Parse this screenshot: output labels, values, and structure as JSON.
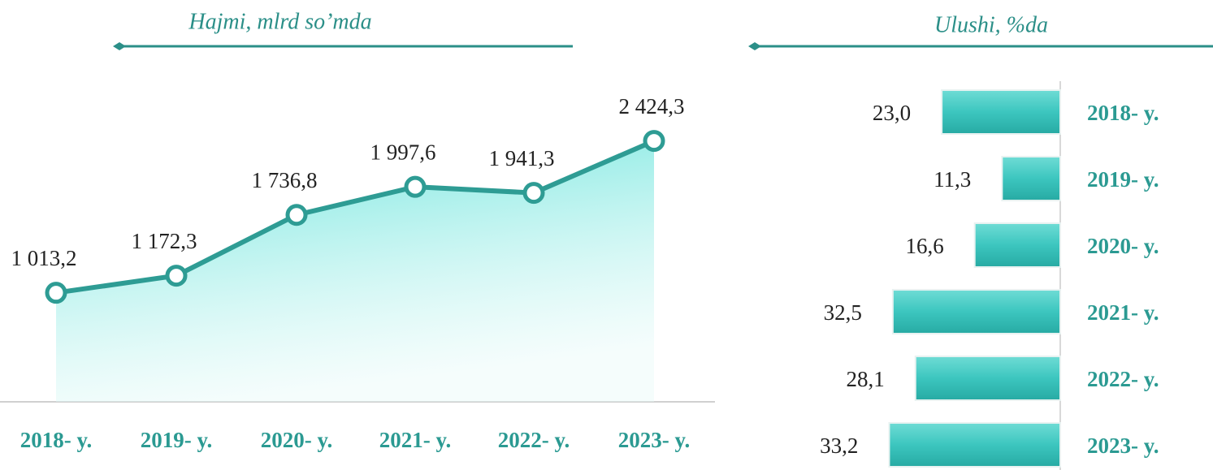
{
  "chart_data": [
    {
      "type": "line",
      "title": "Hajmi, mlrd so’mda",
      "categories": [
        "2018- y.",
        "2019- y.",
        "2020- y.",
        "2021- y.",
        "2022- y.",
        "2023- y."
      ],
      "values": [
        1013.2,
        1172.3,
        1736.8,
        1997.6,
        1941.3,
        2424.3
      ],
      "value_labels": [
        "1 013,2",
        "1 172,3",
        "1 736,8",
        "1 997,6",
        "1 941,3",
        "2 424,3"
      ],
      "color": "#2e9c94",
      "ylim": [
        0,
        3500
      ]
    },
    {
      "type": "bar",
      "title": "Ulushi, %da",
      "categories": [
        "2018- y.",
        "2019- y.",
        "2020- y.",
        "2021- y.",
        "2022- y.",
        "2023- y."
      ],
      "values": [
        23.0,
        11.3,
        16.6,
        32.5,
        28.1,
        33.2
      ],
      "value_labels": [
        "23,0",
        "11,3",
        "16,6",
        "32,5",
        "28,1",
        "33,2"
      ],
      "color": "#3cc6bf",
      "xlim": [
        0,
        35
      ]
    }
  ]
}
